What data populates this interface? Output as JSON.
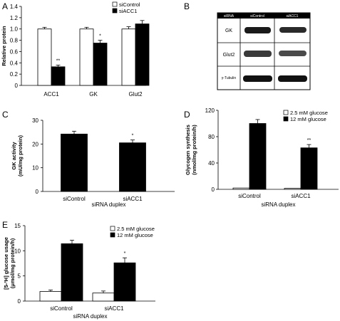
{
  "panels": {
    "A": "A",
    "B": "B",
    "C": "C",
    "D": "D",
    "E": "E"
  },
  "blot": {
    "header_col1": "siRNA",
    "header_col2": "siControl",
    "header_col3": "siACC1",
    "row_labels": [
      "GK",
      "Glut2",
      "γ-Tubulin"
    ]
  },
  "chart_data": [
    {
      "id": "A",
      "type": "bar",
      "categories": [
        "ACC1",
        "GK",
        "Glut2"
      ],
      "series": [
        {
          "name": "siControl",
          "values": [
            1.0,
            1.0,
            1.0
          ],
          "errors": [
            0.03,
            0.03,
            0.04
          ],
          "color": "#ffffff"
        },
        {
          "name": "siACC1",
          "values": [
            0.33,
            0.75,
            1.09
          ],
          "errors": [
            0.03,
            0.05,
            0.06
          ],
          "color": "#000000"
        }
      ],
      "significance": [
        [
          "",
          "**"
        ],
        [
          "",
          "*"
        ],
        [
          "",
          ""
        ]
      ],
      "ylabel": "Relative protein",
      "xlabel": "",
      "ylim": [
        0,
        1.4
      ],
      "yticks": [
        "0",
        "0.2",
        "0.4",
        "0.6",
        "0.8",
        "1.0",
        "1.2",
        "1.4"
      ],
      "legend": "top-right"
    },
    {
      "id": "C",
      "type": "bar",
      "categories": [
        "siControl",
        "siACC1"
      ],
      "series": [
        {
          "name": "",
          "values": [
            24.2,
            20.5
          ],
          "errors": [
            1.2,
            1.2
          ],
          "color": "#000000"
        }
      ],
      "significance": [
        [
          ""
        ],
        [
          "*"
        ]
      ],
      "ylabel": [
        "GK activity",
        "(mU/mg protein)"
      ],
      "xlabel": "siRNA duplex",
      "ylim": [
        0,
        30
      ],
      "yticks": [
        "0",
        "10",
        "20",
        "30"
      ]
    },
    {
      "id": "D",
      "type": "bar",
      "categories": [
        "siControl",
        "siACC1"
      ],
      "series": [
        {
          "name": "2.5 mM glucose",
          "values": [
            2,
            1.5
          ],
          "errors": [
            0,
            0
          ],
          "color": "#ffffff"
        },
        {
          "name": "12 mM glucose",
          "values": [
            100,
            63
          ],
          "errors": [
            6,
            5
          ],
          "color": "#000000"
        }
      ],
      "significance": [
        [
          "",
          ""
        ],
        [
          "",
          "**"
        ]
      ],
      "ylabel": [
        "Glycogen synthesis",
        "(nmol/mg protein/h)"
      ],
      "xlabel": "siRNA duplex",
      "ylim": [
        0,
        120
      ],
      "yticks": [
        "0",
        "40",
        "80",
        "120"
      ],
      "legend": "top-right"
    },
    {
      "id": "E",
      "type": "bar",
      "categories": [
        "siControl",
        "siACC1"
      ],
      "series": [
        {
          "name": "2.5 mM glucose",
          "values": [
            1.9,
            1.6
          ],
          "errors": [
            0.3,
            0.4
          ],
          "color": "#ffffff"
        },
        {
          "name": "12 mM glucose",
          "values": [
            11.4,
            7.6
          ],
          "errors": [
            0.7,
            1.0
          ],
          "color": "#000000"
        }
      ],
      "significance": [
        [
          "",
          ""
        ],
        [
          "",
          "*"
        ]
      ],
      "ylabel": [
        "[5-³H] glucose usage",
        "(μmol/mg protein/h)"
      ],
      "xlabel": "siRNA duplex",
      "ylim": [
        0,
        15
      ],
      "yticks": [
        "0",
        "5",
        "10",
        "15"
      ],
      "legend": "top-right"
    }
  ]
}
